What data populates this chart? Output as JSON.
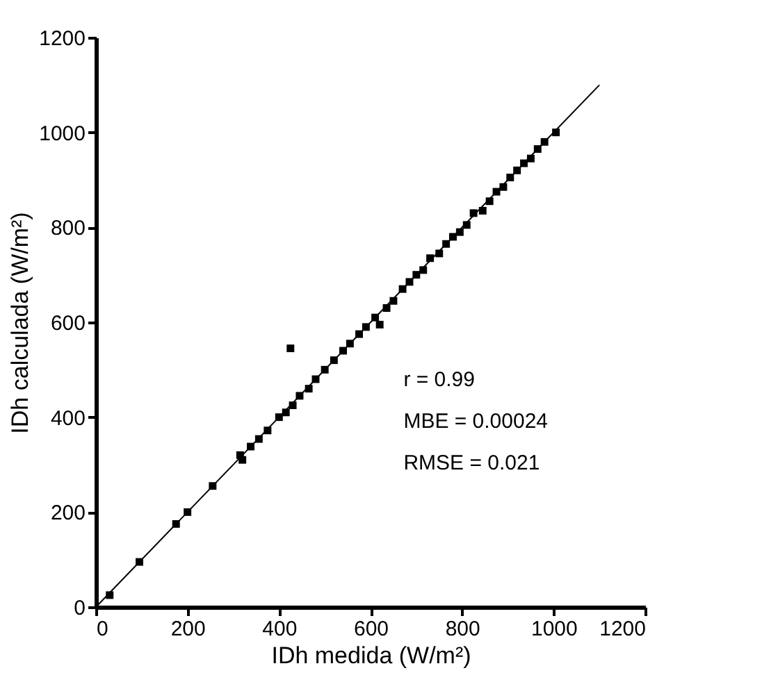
{
  "chart_data": {
    "type": "scatter",
    "xlabel": "IDh medida (W/m²)",
    "ylabel": "IDh calculada (W/m²)",
    "xlim": [
      0,
      1200
    ],
    "ylim": [
      0,
      1200
    ],
    "xticks": [
      0,
      200,
      400,
      600,
      800,
      1000,
      1200
    ],
    "yticks": [
      0,
      200,
      400,
      600,
      800,
      1000,
      1200
    ],
    "grid": false,
    "series": [
      {
        "color": "#000000",
        "marker": "square",
        "x": [
          30,
          95,
          175,
          200,
          255,
          315,
          320,
          338,
          356,
          375,
          400,
          415,
          430,
          445,
          465,
          480,
          500,
          520,
          540,
          555,
          575,
          590,
          610,
          620,
          635,
          650,
          670,
          685,
          700,
          715,
          730,
          750,
          765,
          780,
          795,
          810,
          825,
          845,
          860,
          875,
          890,
          905,
          920,
          935,
          950,
          965,
          980,
          1005
        ],
        "values": [
          25,
          95,
          175,
          200,
          255,
          320,
          310,
          338,
          354,
          372,
          400,
          410,
          425,
          445,
          460,
          480,
          500,
          520,
          540,
          555,
          575,
          590,
          610,
          595,
          630,
          645,
          670,
          685,
          700,
          710,
          735,
          745,
          765,
          780,
          790,
          805,
          830,
          835,
          855,
          875,
          885,
          905,
          920,
          935,
          945,
          965,
          980,
          1000
        ]
      },
      {
        "color": "#000000",
        "marker": "square",
        "x": [
          425
        ],
        "values": [
          545
        ]
      },
      {
        "type": "line",
        "marker": "none",
        "color": "#000000",
        "x": [
          0,
          1100
        ],
        "values": [
          0,
          1100
        ]
      }
    ],
    "annotations": [
      "r = 0.99",
      "MBE = 0.00024",
      "RMSE = 0.021"
    ]
  }
}
